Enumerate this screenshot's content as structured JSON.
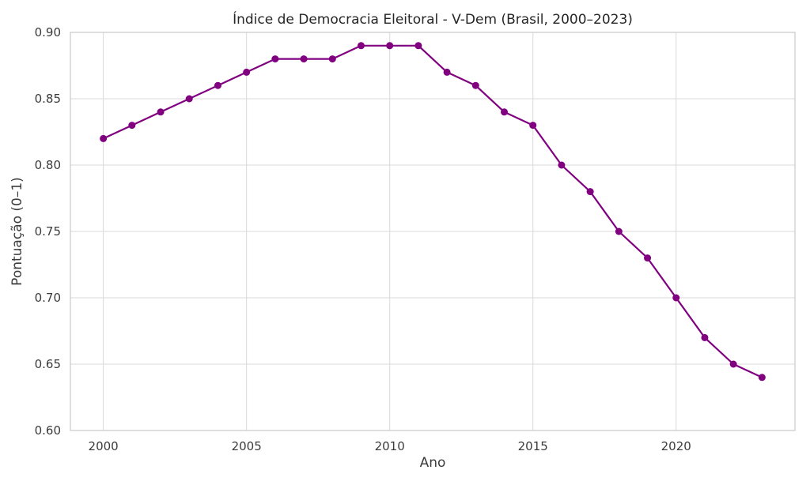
{
  "chart_data": {
    "type": "line",
    "title": "Índice de Democracia Eleitoral - V-Dem (Brasil, 2000–2023)",
    "xlabel": "Ano",
    "ylabel": "Pontuação (0–1)",
    "x": [
      2000,
      2001,
      2002,
      2003,
      2004,
      2005,
      2006,
      2007,
      2008,
      2009,
      2010,
      2011,
      2012,
      2013,
      2014,
      2015,
      2016,
      2017,
      2018,
      2019,
      2020,
      2021,
      2022,
      2023
    ],
    "values": [
      0.82,
      0.83,
      0.84,
      0.85,
      0.86,
      0.87,
      0.88,
      0.88,
      0.88,
      0.89,
      0.89,
      0.89,
      0.87,
      0.86,
      0.84,
      0.83,
      0.8,
      0.78,
      0.75,
      0.73,
      0.7,
      0.67,
      0.65,
      0.64
    ],
    "xlim": [
      1998.85,
      2024.15
    ],
    "ylim": [
      0.6,
      0.9
    ],
    "xticks": [
      2000,
      2005,
      2010,
      2015,
      2020
    ],
    "xtick_labels": [
      "2000",
      "2005",
      "2010",
      "2015",
      "2020"
    ],
    "yticks": [
      0.6,
      0.65,
      0.7,
      0.75,
      0.8,
      0.85,
      0.9
    ],
    "ytick_labels": [
      "0.60",
      "0.65",
      "0.70",
      "0.75",
      "0.80",
      "0.85",
      "0.90"
    ],
    "grid": true,
    "legend": false,
    "colors": {
      "line": "#800080",
      "marker": "#800080",
      "grid": "#d9d9d9",
      "border": "#cccccc",
      "tick_text": "#3b3b3b",
      "title_text": "#262626",
      "background": "#ffffff"
    },
    "marker_style": "circle",
    "line_width": 2.2,
    "marker_radius": 4.5
  }
}
